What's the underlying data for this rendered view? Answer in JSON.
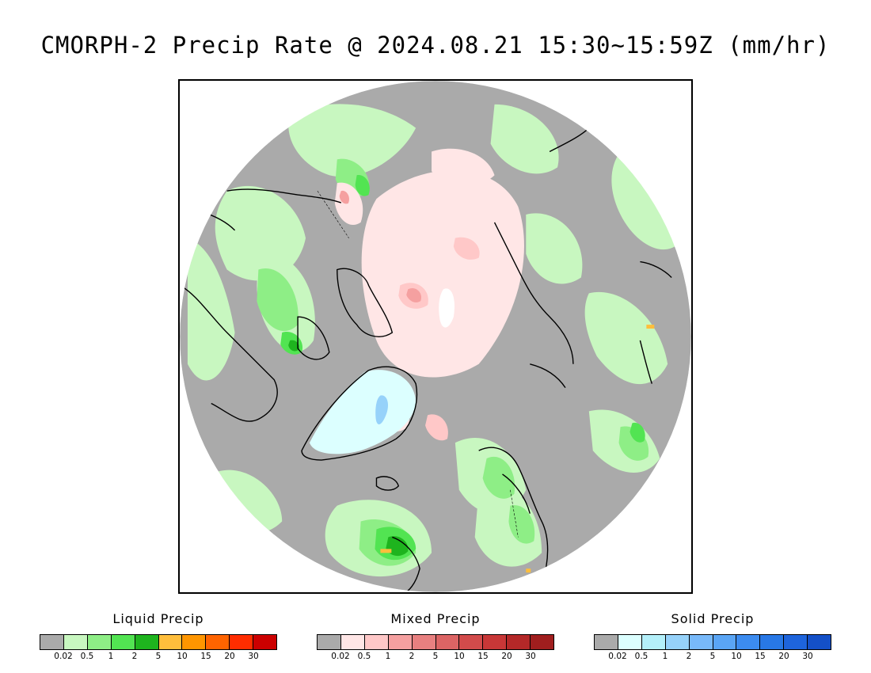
{
  "title": "CMORPH-2 Precip Rate @ 2024.08.21 15:30~15:59Z (mm/hr)",
  "map": {
    "projection": "north-polar-stereographic",
    "background_color": "#aaaaaa",
    "coastline_color": "#000000"
  },
  "legends": [
    {
      "title": "Liquid Precip",
      "colors": [
        "#aaaaaa",
        "#c8f7c0",
        "#8eee86",
        "#52e452",
        "#1eb41e",
        "#ffbe3c",
        "#ff9600",
        "#ff6400",
        "#ff2d00",
        "#cc0000"
      ],
      "ticks": [
        "0.02",
        "0.5",
        "1",
        "2",
        "5",
        "10",
        "15",
        "20",
        "30"
      ]
    },
    {
      "title": "Mixed Precip",
      "colors": [
        "#aaaaaa",
        "#ffe6e6",
        "#ffc8c8",
        "#f5a0a0",
        "#e88080",
        "#dc6464",
        "#d24b4b",
        "#c83737",
        "#b42828",
        "#a01e1e"
      ],
      "ticks": [
        "0.02",
        "0.5",
        "1",
        "2",
        "5",
        "10",
        "15",
        "20",
        "30"
      ]
    },
    {
      "title": "Solid Precip",
      "colors": [
        "#aaaaaa",
        "#dcffff",
        "#b4f0fa",
        "#96d2fa",
        "#78b9fa",
        "#5aa5f5",
        "#3c8cf0",
        "#2878e6",
        "#1e64dc",
        "#1450c8"
      ],
      "ticks": [
        "0.02",
        "0.5",
        "1",
        "2",
        "5",
        "10",
        "15",
        "20",
        "30"
      ]
    }
  ]
}
